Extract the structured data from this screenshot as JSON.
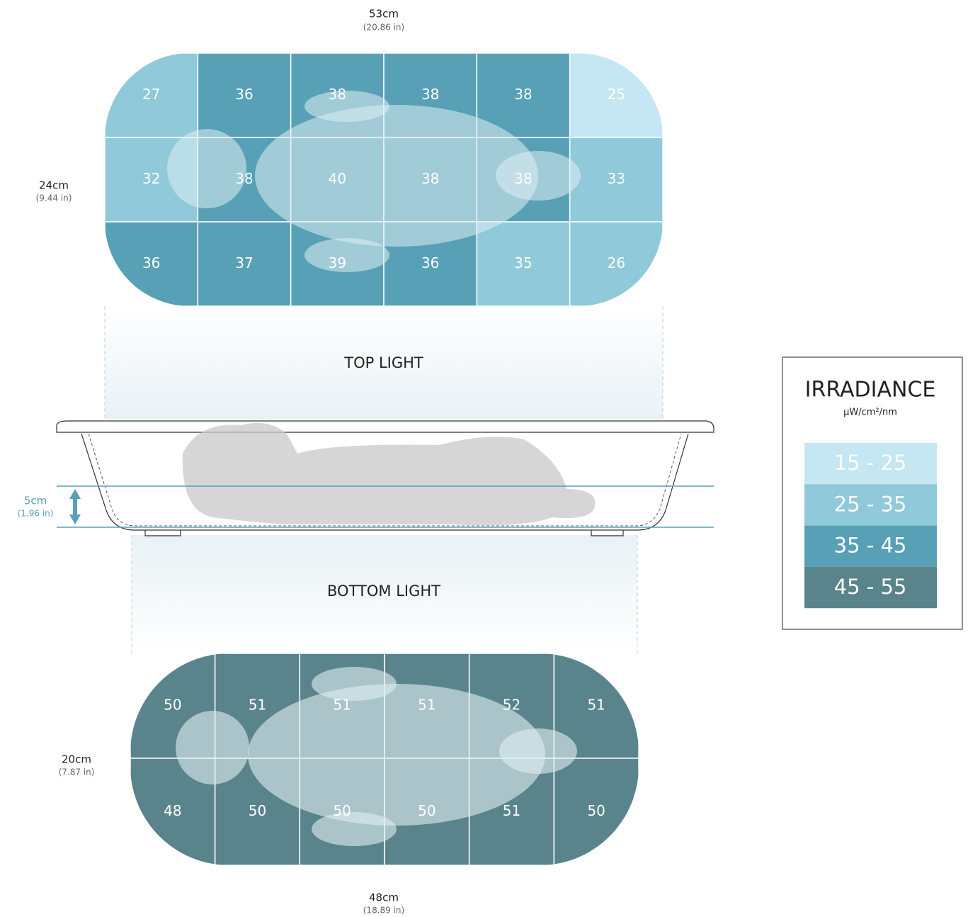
{
  "top_width": {
    "metric": "53cm",
    "imperial": "(20.86 in)"
  },
  "top_height": {
    "metric": "24cm",
    "imperial": "(9.44 in)"
  },
  "top_map": {
    "rows": [
      [
        27,
        36,
        38,
        38,
        38,
        25
      ],
      [
        32,
        38,
        40,
        38,
        38,
        33
      ],
      [
        36,
        37,
        39,
        36,
        35,
        26
      ]
    ],
    "colors": [
      [
        "#8fc9da",
        "#58a0b5",
        "#58a0b5",
        "#58a0b5",
        "#58a0b5",
        "#c5e6f3"
      ],
      [
        "#8fc9da",
        "#58a0b5",
        "#58a0b5",
        "#58a0b5",
        "#58a0b5",
        "#8fc9da"
      ],
      [
        "#58a0b5",
        "#58a0b5",
        "#58a0b5",
        "#58a0b5",
        "#8fc9da",
        "#8fc9da"
      ]
    ]
  },
  "top_label": "TOP LIGHT",
  "depth": {
    "metric": "5cm",
    "imperial": "(1.96 in)"
  },
  "bottom_label": "BOTTOM LIGHT",
  "bottom_height": {
    "metric": "20cm",
    "imperial": "(7.87 in)"
  },
  "bottom_map": {
    "rows": [
      [
        50,
        51,
        51,
        51,
        52,
        51
      ],
      [
        48,
        50,
        50,
        50,
        51,
        50
      ]
    ],
    "colors": [
      [
        "#5a848c",
        "#5a848c",
        "#5a848c",
        "#5a848c",
        "#5a848c",
        "#5a848c"
      ],
      [
        "#5a848c",
        "#5a848c",
        "#5a848c",
        "#5a848c",
        "#5a848c",
        "#5a848c"
      ]
    ]
  },
  "bottom_width": {
    "metric": "48cm",
    "imperial": "(18.89 in)"
  },
  "legend": {
    "title": "IRRADIANCE",
    "unit": "µW/cm²/nm",
    "items": [
      {
        "label": "15 - 25",
        "color": "#c5e6f3"
      },
      {
        "label": "25 - 35",
        "color": "#8fc9da"
      },
      {
        "label": "35 - 45",
        "color": "#58a0b5"
      },
      {
        "label": "45 - 55",
        "color": "#5a848c"
      }
    ]
  }
}
